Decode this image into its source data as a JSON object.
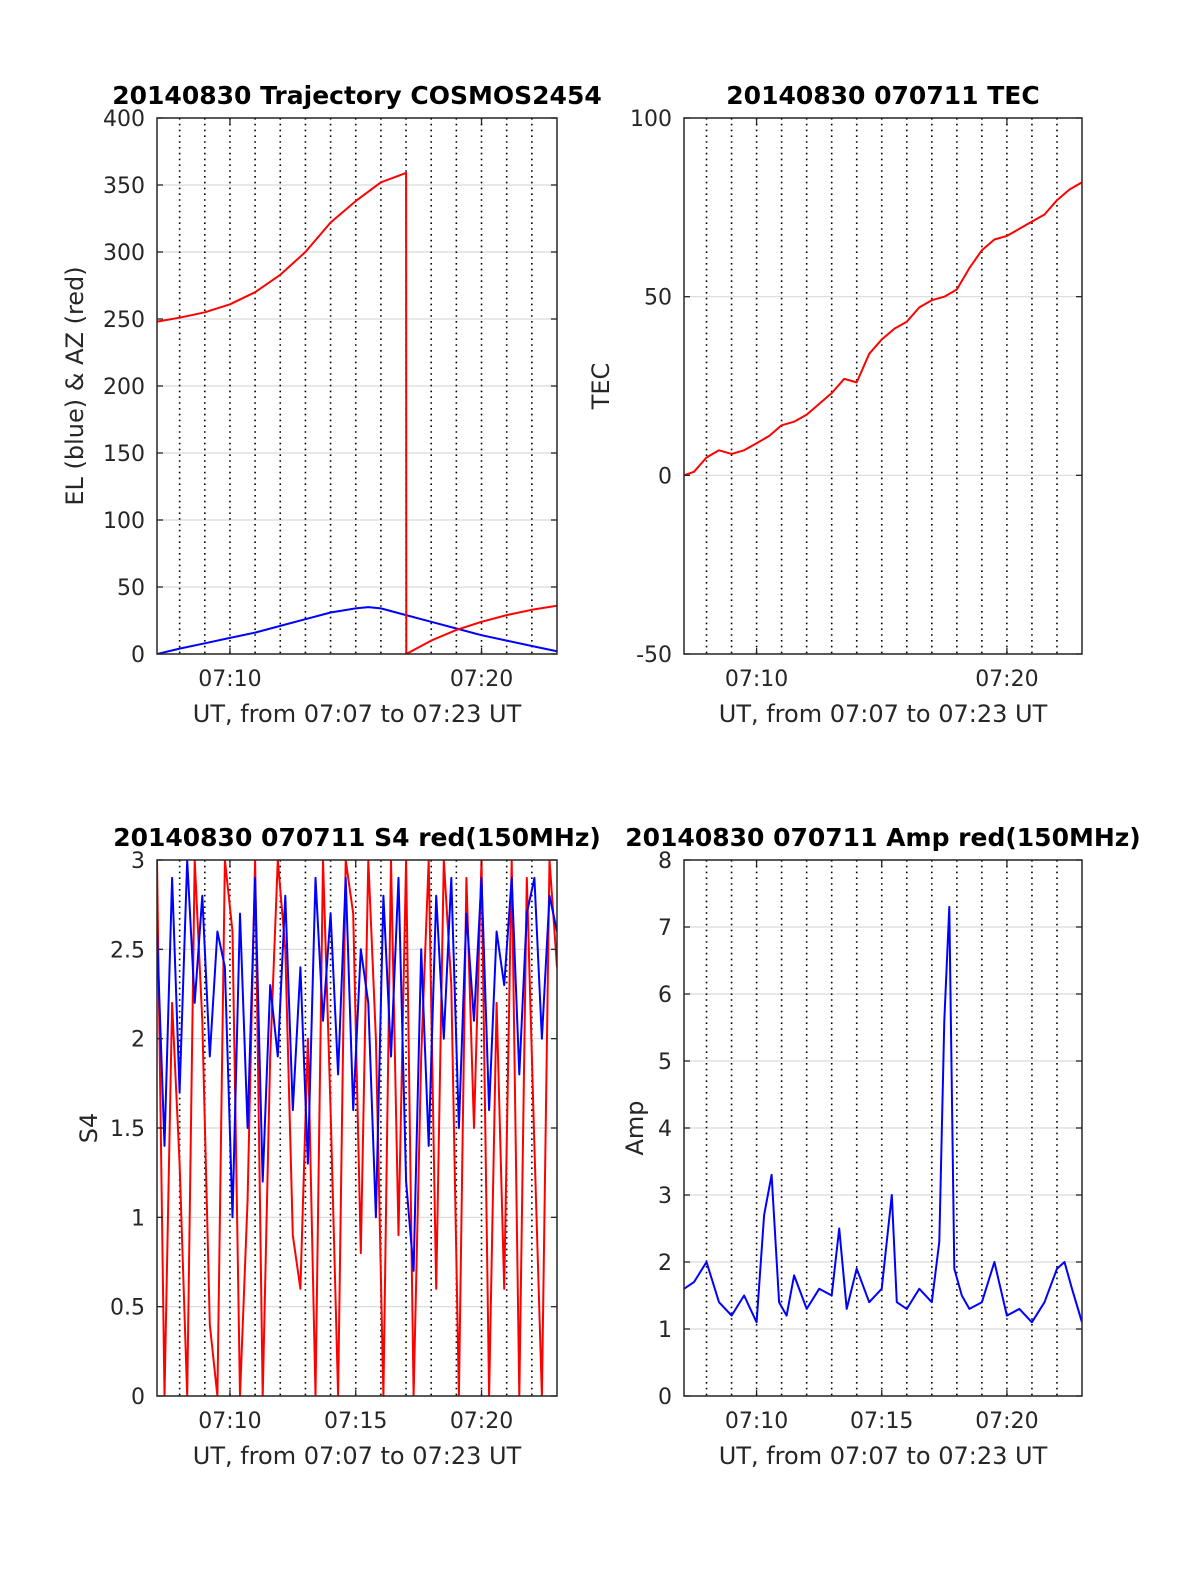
{
  "colors": {
    "el_line": "#0000ff",
    "az_line": "#ff0000",
    "tec_line": "#ff0000",
    "s4_line_red": "#ff0000",
    "s4_line_blue": "#0000ff",
    "amp_line": "#0000ff",
    "axes": "#262626",
    "grid": "#d9d9d9",
    "dotted_grid": "#000000"
  },
  "chart_data": [
    {
      "type": "line",
      "title": "20140830 Trajectory COSMOS2454",
      "xlabel": "UT, from 07:07 to 07:23 UT",
      "ylabel": "EL (blue) & AZ (red)",
      "xlim": [
        7.1,
        23.0
      ],
      "ylim": [
        0,
        400
      ],
      "xticks": [
        10,
        20
      ],
      "xtick_labels": [
        "07:10",
        "07:20"
      ],
      "yticks": [
        0,
        50,
        100,
        150,
        200,
        250,
        300,
        350,
        400
      ],
      "ytick_labels": [
        "0",
        "50",
        "100",
        "150",
        "200",
        "250",
        "300",
        "350",
        "400"
      ],
      "grid": true,
      "dotted_vlines": [
        8,
        9,
        10,
        11,
        12,
        13,
        14,
        15,
        16,
        17,
        18,
        19,
        20,
        21,
        22
      ],
      "series": [
        {
          "color": "blue",
          "x": [
            7.1,
            8,
            9,
            10,
            11,
            12,
            13,
            14,
            15,
            15.5,
            16,
            17,
            18,
            19,
            20,
            21,
            22,
            23
          ],
          "y": [
            0,
            4,
            8,
            12,
            16,
            21,
            26,
            31,
            34,
            35,
            34,
            29,
            24,
            19,
            14,
            10,
            6,
            2
          ]
        },
        {
          "color": "red",
          "x": [
            7.1,
            8,
            9,
            10,
            11,
            12,
            13,
            14,
            15,
            16,
            17.0,
            17.01,
            18,
            19,
            20,
            21,
            22,
            23
          ],
          "y": [
            248,
            251,
            255,
            261,
            270,
            283,
            300,
            322,
            338,
            352,
            359,
            0,
            10,
            18,
            24,
            29,
            33,
            36
          ]
        }
      ]
    },
    {
      "type": "line",
      "title": "20140830 070711 TEC",
      "xlabel": "UT, from 07:07 to 07:23 UT",
      "ylabel": "TEC",
      "xlim": [
        7.1,
        23.0
      ],
      "ylim": [
        -50,
        100
      ],
      "xticks": [
        10,
        20
      ],
      "xtick_labels": [
        "07:10",
        "07:20"
      ],
      "yticks": [
        -50,
        0,
        50,
        100
      ],
      "ytick_labels": [
        "-50",
        "0",
        "50",
        "100"
      ],
      "grid": true,
      "dotted_vlines": [
        8,
        9,
        10,
        11,
        12,
        13,
        14,
        15,
        16,
        17,
        18,
        19,
        20,
        21,
        22
      ],
      "series": [
        {
          "color": "red",
          "x": [
            7.1,
            7.5,
            8.0,
            8.5,
            9.0,
            9.5,
            10.0,
            10.5,
            11.0,
            11.5,
            12.0,
            12.5,
            13.0,
            13.5,
            14.0,
            14.5,
            15.0,
            15.5,
            16.0,
            16.5,
            17.0,
            17.5,
            18.0,
            18.5,
            19.0,
            19.5,
            20.0,
            20.5,
            21.0,
            21.5,
            22.0,
            22.5,
            23.0
          ],
          "y": [
            0,
            1,
            5,
            7,
            6,
            7,
            9,
            11,
            14,
            15,
            17,
            20,
            23,
            27,
            26,
            34,
            38,
            41,
            43,
            47,
            49,
            50,
            52,
            58,
            63,
            66,
            67,
            69,
            71,
            73,
            77,
            80,
            82
          ]
        }
      ]
    },
    {
      "type": "line",
      "title": "20140830 070711 S4 red(150MHz)",
      "xlabel": "UT, from 07:07 to 07:23 UT",
      "ylabel": "S4",
      "xlim": [
        7.1,
        23.0
      ],
      "ylim": [
        0,
        3
      ],
      "xticks": [
        10,
        15,
        20
      ],
      "xtick_labels": [
        "07:10",
        "07:15",
        "07:20"
      ],
      "yticks": [
        0,
        0.5,
        1,
        1.5,
        2,
        2.5,
        3
      ],
      "ytick_labels": [
        "0",
        "0.5",
        "1",
        "1.5",
        "2",
        "2.5",
        "3"
      ],
      "grid": true,
      "dotted_vlines": [
        8,
        9,
        10,
        11,
        12,
        13,
        14,
        15,
        16,
        17,
        18,
        19,
        20,
        21,
        22
      ],
      "series": [
        {
          "color": "red",
          "x": [
            7.1,
            7.4,
            7.7,
            8.0,
            8.3,
            8.6,
            8.9,
            9.2,
            9.5,
            9.8,
            10.1,
            10.4,
            10.7,
            11.0,
            11.3,
            11.6,
            11.9,
            12.2,
            12.5,
            12.8,
            13.1,
            13.4,
            13.7,
            14.0,
            14.3,
            14.6,
            14.9,
            15.2,
            15.5,
            15.8,
            16.1,
            16.4,
            16.7,
            17.0,
            17.3,
            17.6,
            17.9,
            18.2,
            18.5,
            18.8,
            19.1,
            19.4,
            19.7,
            20.0,
            20.3,
            20.6,
            20.9,
            21.2,
            21.5,
            21.8,
            22.1,
            22.4,
            22.7,
            23.0
          ],
          "y": [
            3,
            0,
            2.2,
            1.3,
            0,
            3,
            2.1,
            0.4,
            0,
            3,
            2.6,
            0,
            1.1,
            3,
            0,
            1.9,
            3,
            2.5,
            0.9,
            0.6,
            2.0,
            0,
            3,
            1.6,
            0,
            3,
            2.7,
            0.8,
            3,
            2.0,
            0,
            3,
            0.9,
            3,
            0,
            1.9,
            3,
            0.6,
            3,
            2.3,
            0,
            2.9,
            1.5,
            3,
            0,
            2.2,
            0.6,
            3,
            0,
            2.9,
            1.4,
            0,
            3,
            2.4
          ]
        },
        {
          "color": "blue",
          "x": [
            7.1,
            7.4,
            7.7,
            8.0,
            8.3,
            8.6,
            8.9,
            9.2,
            9.5,
            9.8,
            10.1,
            10.4,
            10.7,
            11.0,
            11.3,
            11.6,
            11.9,
            12.2,
            12.5,
            12.8,
            13.1,
            13.4,
            13.7,
            14.0,
            14.3,
            14.6,
            14.9,
            15.2,
            15.5,
            15.8,
            16.1,
            16.4,
            16.7,
            17.0,
            17.3,
            17.6,
            17.9,
            18.2,
            18.5,
            18.8,
            19.1,
            19.4,
            19.7,
            20.0,
            20.3,
            20.6,
            20.9,
            21.2,
            21.5,
            21.8,
            22.1,
            22.4,
            22.7,
            23.0
          ],
          "y": [
            2.6,
            1.4,
            2.9,
            1.7,
            3,
            2.2,
            2.8,
            1.9,
            2.6,
            2.4,
            1.0,
            2.7,
            1.5,
            2.9,
            1.2,
            2.3,
            1.9,
            2.8,
            1.6,
            2.4,
            1.3,
            2.9,
            2.1,
            2.7,
            1.8,
            2.9,
            1.6,
            2.5,
            2.2,
            1.0,
            2.8,
            1.9,
            2.9,
            1.2,
            0.7,
            2.5,
            1.4,
            2.8,
            2.0,
            2.9,
            1.5,
            2.7,
            2.1,
            2.9,
            1.6,
            2.6,
            2.3,
            2.9,
            1.8,
            2.7,
            2.9,
            2.0,
            2.8,
            2.6
          ]
        }
      ]
    },
    {
      "type": "line",
      "title": "20140830 070711 Amp red(150MHz)",
      "xlabel": "UT, from 07:07 to 07:23 UT",
      "ylabel": "Amp",
      "xlim": [
        7.1,
        23.0
      ],
      "ylim": [
        0,
        8
      ],
      "xticks": [
        10,
        15,
        20
      ],
      "xtick_labels": [
        "07:10",
        "07:15",
        "07:20"
      ],
      "yticks": [
        0,
        1,
        2,
        3,
        4,
        5,
        6,
        7,
        8
      ],
      "ytick_labels": [
        "0",
        "1",
        "2",
        "3",
        "4",
        "5",
        "6",
        "7",
        "8"
      ],
      "grid": true,
      "dotted_vlines": [
        8,
        9,
        10,
        11,
        12,
        13,
        14,
        15,
        16,
        17,
        18,
        19,
        20,
        21,
        22
      ],
      "series": [
        {
          "color": "blue",
          "x": [
            7.1,
            7.5,
            8.0,
            8.5,
            9.0,
            9.5,
            10.0,
            10.3,
            10.6,
            10.9,
            11.2,
            11.5,
            12.0,
            12.5,
            13.0,
            13.3,
            13.6,
            14.0,
            14.5,
            15.0,
            15.4,
            15.6,
            16.0,
            16.5,
            17.0,
            17.3,
            17.5,
            17.7,
            17.9,
            18.2,
            18.5,
            19.0,
            19.5,
            20.0,
            20.5,
            21.0,
            21.5,
            22.0,
            22.3,
            22.6,
            23.0
          ],
          "y": [
            1.6,
            1.7,
            2.0,
            1.4,
            1.2,
            1.5,
            1.1,
            2.7,
            3.3,
            1.4,
            1.2,
            1.8,
            1.3,
            1.6,
            1.5,
            2.5,
            1.3,
            1.9,
            1.4,
            1.6,
            3.0,
            1.4,
            1.3,
            1.6,
            1.4,
            2.3,
            5.6,
            7.3,
            1.9,
            1.5,
            1.3,
            1.4,
            2.0,
            1.2,
            1.3,
            1.1,
            1.4,
            1.9,
            2.0,
            1.6,
            1.1
          ]
        }
      ]
    }
  ]
}
